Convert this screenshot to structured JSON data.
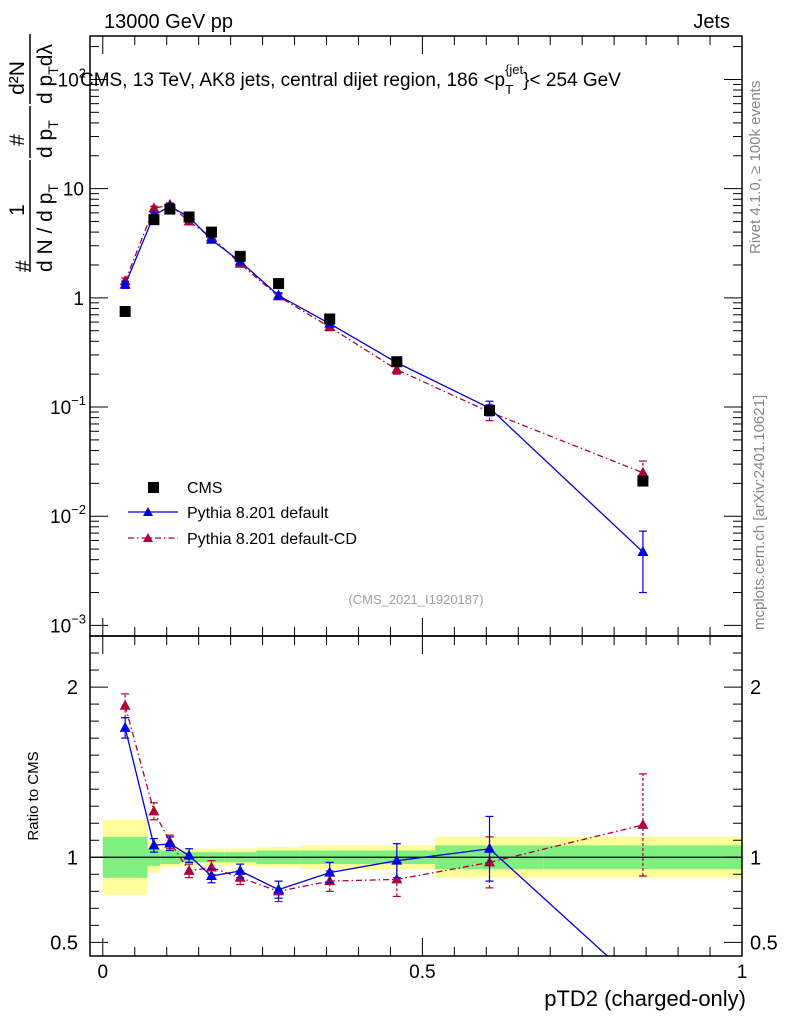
{
  "header": {
    "left": "13000 GeV pp",
    "right": "Jets"
  },
  "side_labels": {
    "rivet": "Rivet 4.1.0, ≥ 100k events",
    "mcplots": "mcplots.cern.ch [arXiv:2401.10621]"
  },
  "colors": {
    "cms": "#000000",
    "default": "#0000e0",
    "default_cd": "#b0003a",
    "band_inner": "#7ff07f",
    "band_outer": "#ffff99"
  },
  "chart_data": [
    {
      "type": "scatter",
      "title": "CMS, 13 TeV, AK8 jets, central dijet region, 186 <p_T^{jet}< 254 GeV",
      "title_parts": {
        "prefix": "CMS, 13 TeV, AK8 jets, central dijet region, 186 <p",
        "sub": "T",
        "sup": "{jet",
        "suffix": "}< 254 GeV"
      },
      "watermark": "(CMS_2021_I1920187)",
      "yscale": "log",
      "xlim": [
        -0.02,
        1.0
      ],
      "ylim": [
        0.0008,
        250
      ],
      "y_ticks": [
        {
          "value": 0.001,
          "base": "10",
          "exp": "−3"
        },
        {
          "value": 0.01,
          "base": "10",
          "exp": "−2"
        },
        {
          "value": 0.1,
          "base": "10",
          "exp": "−1"
        },
        {
          "value": 1,
          "base": "1",
          "exp": ""
        },
        {
          "value": 10,
          "base": "10",
          "exp": ""
        },
        {
          "value": 100,
          "base": "10",
          "exp": "2"
        }
      ],
      "ylabel": {
        "num": "1",
        "den": "d N / d p",
        "den_sub": "T",
        "prefix_hash": "#",
        "part2_num": "#",
        "part2_den": "d p",
        "part2_den_sub": "T",
        "part3_num": "d²N",
        "part3_den": "d p",
        "part3_den_sub": "T",
        "part3_den_end": "dλ"
      },
      "legend_position": "bottom-left",
      "series": [
        {
          "name": "CMS",
          "style": "square",
          "x": [
            0.035,
            0.08,
            0.105,
            0.135,
            0.17,
            0.215,
            0.275,
            0.355,
            0.46,
            0.605,
            0.845
          ],
          "y": [
            0.75,
            5.2,
            6.5,
            5.5,
            4.0,
            2.4,
            1.35,
            0.64,
            0.26,
            0.093,
            0.021
          ]
        },
        {
          "name": "Pythia 8.201 default",
          "style": "triangle-solid",
          "x": [
            0.035,
            0.08,
            0.105,
            0.135,
            0.17,
            0.215,
            0.275,
            0.355,
            0.46,
            0.605,
            0.845
          ],
          "y": [
            1.32,
            5.7,
            6.9,
            5.5,
            3.4,
            2.15,
            1.05,
            0.58,
            0.255,
            0.098,
            0.0047
          ],
          "err_lo": [
            0.1,
            0.3,
            0.3,
            0.25,
            0.2,
            0.12,
            0.06,
            0.04,
            0.02,
            0.015,
            0.0027
          ],
          "err_hi": [
            0.1,
            0.3,
            0.3,
            0.25,
            0.2,
            0.12,
            0.06,
            0.04,
            0.02,
            0.015,
            0.0026
          ]
        },
        {
          "name": "Pythia 8.201 default-CD",
          "style": "triangle-dashdot",
          "x": [
            0.035,
            0.08,
            0.105,
            0.135,
            0.17,
            0.215,
            0.275,
            0.355,
            0.46,
            0.605,
            0.845
          ],
          "y": [
            1.42,
            6.6,
            7.1,
            5.0,
            3.6,
            2.05,
            1.03,
            0.54,
            0.22,
            0.09,
            0.025
          ],
          "err_lo": [
            0.1,
            0.3,
            0.3,
            0.25,
            0.2,
            0.12,
            0.06,
            0.04,
            0.02,
            0.015,
            0.006
          ],
          "err_hi": [
            0.1,
            0.3,
            0.3,
            0.25,
            0.2,
            0.12,
            0.06,
            0.04,
            0.02,
            0.015,
            0.007
          ]
        }
      ]
    },
    {
      "type": "line",
      "ylabel": "Ratio to CMS",
      "xlabel": "pTD2 (charged-only)",
      "xlim": [
        -0.02,
        1.0
      ],
      "ylim": [
        0.42,
        2.3
      ],
      "x_ticks": [
        {
          "value": 0,
          "label": "0"
        },
        {
          "value": 0.5,
          "label": "0.5"
        },
        {
          "value": 1,
          "label": "1"
        }
      ],
      "y_ticks": [
        {
          "value": 0.5,
          "label": "0.5"
        },
        {
          "value": 1,
          "label": "1"
        },
        {
          "value": 2,
          "label": "2"
        }
      ],
      "bands": {
        "bin_edges": [
          0.0,
          0.07,
          0.09,
          0.12,
          0.15,
          0.19,
          0.24,
          0.31,
          0.4,
          0.52,
          0.69,
          1.0
        ],
        "inner": [
          0.12,
          0.05,
          0.04,
          0.03,
          0.03,
          0.03,
          0.04,
          0.04,
          0.04,
          0.07,
          0.07
        ],
        "outer": [
          0.22,
          0.09,
          0.06,
          0.05,
          0.05,
          0.05,
          0.06,
          0.07,
          0.07,
          0.12,
          0.12
        ]
      },
      "series": [
        {
          "name": "Pythia 8.201 default",
          "x": [
            0.035,
            0.08,
            0.105,
            0.135,
            0.17,
            0.215,
            0.275,
            0.355,
            0.46,
            0.605,
            0.845
          ],
          "y": [
            1.76,
            1.07,
            1.08,
            1.01,
            0.89,
            0.92,
            0.81,
            0.91,
            0.98,
            1.05,
            0.23
          ],
          "err": [
            0.06,
            0.04,
            0.04,
            0.04,
            0.04,
            0.04,
            0.05,
            0.06,
            0.1,
            0.19,
            0.0
          ]
        },
        {
          "name": "Pythia 8.201 default-CD",
          "x": [
            0.035,
            0.08,
            0.105,
            0.135,
            0.17,
            0.215,
            0.275,
            0.355,
            0.46,
            0.605,
            0.845
          ],
          "y": [
            1.89,
            1.27,
            1.09,
            0.92,
            0.94,
            0.88,
            0.8,
            0.86,
            0.87,
            0.97,
            1.19
          ],
          "err": [
            0.07,
            0.05,
            0.04,
            0.04,
            0.04,
            0.04,
            0.06,
            0.06,
            0.1,
            0.15,
            0.3
          ]
        }
      ]
    }
  ]
}
